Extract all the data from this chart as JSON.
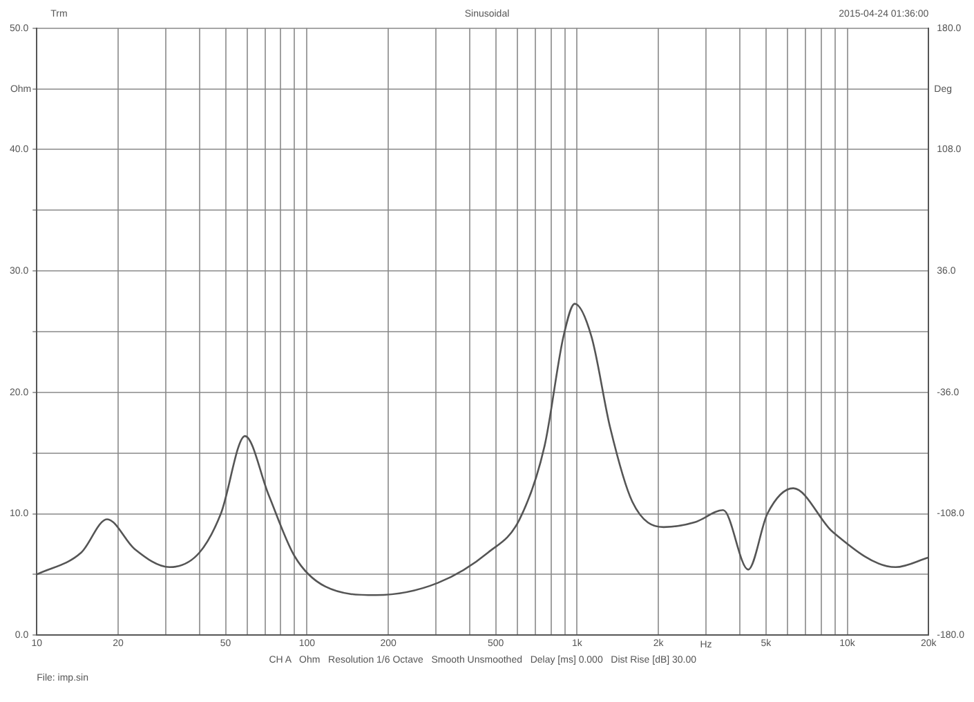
{
  "chart_data": {
    "type": "line",
    "title": "Sinusoidal",
    "xlabel": "Hz",
    "ylabel": "Ohm",
    "y2label": "Deg",
    "annotations": [
      "Trm",
      "2015-04-24 01:36:00",
      "CH A   Ohm   Resolution 1/6 Octave   Smooth Unsmoothed   Delay [ms] 0.000   Dist Rise [dB] 30.00",
      "File: imp.sin"
    ],
    "x": [
      10,
      14.6,
      18.2,
      23,
      31,
      40,
      48,
      59,
      72,
      90,
      117,
      180,
      305,
      468,
      611,
      758,
      890,
      980,
      1130,
      1325,
      1600,
      2090,
      2730,
      3470,
      4300,
      5060,
      6310,
      8830,
      15100,
      20000
    ],
    "series": [
      {
        "color": "#555555",
        "values": [
          5.0,
          6.8,
          9.55,
          7.1,
          5.6,
          6.8,
          10.0,
          16.4,
          11.6,
          6.5,
          4.0,
          3.3,
          4.3,
          6.8,
          9.5,
          15.6,
          24.6,
          27.3,
          24.6,
          17.1,
          11.0,
          8.9,
          9.3,
          10.3,
          5.4,
          10.0,
          12.1,
          8.5,
          5.6,
          6.4
        ]
      }
    ],
    "log": "x",
    "xlim": [
      10,
      20000
    ],
    "xticks": [
      {
        "value": 10,
        "label": "10"
      },
      {
        "value": 20,
        "label": "20"
      },
      {
        "value": 30,
        "label": null
      },
      {
        "value": 40,
        "label": null
      },
      {
        "value": 50,
        "label": "50"
      },
      {
        "value": 60,
        "label": null
      },
      {
        "value": 70,
        "label": null
      },
      {
        "value": 80,
        "label": null
      },
      {
        "value": 90,
        "label": null
      },
      {
        "value": 100,
        "label": "100"
      },
      {
        "value": 200,
        "label": "200"
      },
      {
        "value": 300,
        "label": null
      },
      {
        "value": 400,
        "label": null
      },
      {
        "value": 500,
        "label": "500"
      },
      {
        "value": 600,
        "label": null
      },
      {
        "value": 700,
        "label": null
      },
      {
        "value": 800,
        "label": null
      },
      {
        "value": 900,
        "label": null
      },
      {
        "value": 1000,
        "label": "1k"
      },
      {
        "value": 2000,
        "label": "2k"
      },
      {
        "value": 3000,
        "label": null
      },
      {
        "value": 4000,
        "label": null
      },
      {
        "value": 5000,
        "label": "5k"
      },
      {
        "value": 6000,
        "label": null
      },
      {
        "value": 7000,
        "label": null
      },
      {
        "value": 8000,
        "label": null
      },
      {
        "value": 9000,
        "label": null
      },
      {
        "value": 10000,
        "label": "10k"
      },
      {
        "value": 20000,
        "label": "20k"
      }
    ],
    "ylim": [
      0,
      50
    ],
    "yticks": [
      {
        "value": 0,
        "label": "0.0"
      },
      {
        "value": 5,
        "label": null
      },
      {
        "value": 10,
        "label": "10.0"
      },
      {
        "value": 15,
        "label": null
      },
      {
        "value": 20,
        "label": "20.0"
      },
      {
        "value": 25,
        "label": null
      },
      {
        "value": 30,
        "label": "30.0"
      },
      {
        "value": 35,
        "label": null
      },
      {
        "value": 40,
        "label": "40.0"
      },
      {
        "value": 45,
        "label": null
      },
      {
        "value": 50,
        "label": "50.0"
      }
    ],
    "y2lim": [
      -180,
      180
    ],
    "y2ticks": [
      {
        "value": -180,
        "label": "-180.0"
      },
      {
        "value": -108,
        "label": "-108.0"
      },
      {
        "value": -36,
        "label": "-36.0"
      },
      {
        "value": 36,
        "label": "36.0"
      },
      {
        "value": 108,
        "label": "108.0"
      },
      {
        "value": 180,
        "label": "180.0"
      }
    ],
    "grid": true,
    "legend": false,
    "marker": "none",
    "line_style": "solid"
  }
}
